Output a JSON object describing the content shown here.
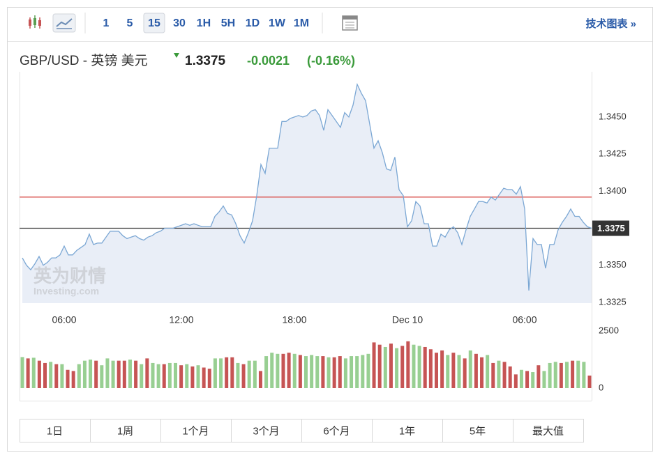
{
  "toolbar": {
    "intervals": [
      "1",
      "5",
      "15",
      "30",
      "1H",
      "5H",
      "1D",
      "1W",
      "1M"
    ],
    "selected": "15",
    "advanced": "技术图表 »"
  },
  "header": {
    "pair": "GBP/USD - 英镑 美元",
    "price": "1.3375",
    "change": "-0.0021",
    "change_pct": "(-0.16%)"
  },
  "watermark": {
    "brand": "英为财情",
    "site": "Investing.com"
  },
  "chart_data": [
    {
      "type": "area",
      "color": "#7ba7d4",
      "fill": "#e9eef7",
      "values": [
        1.3355,
        1.335,
        1.3347,
        1.3351,
        1.3356,
        1.335,
        1.3352,
        1.3355,
        1.3355,
        1.3357,
        1.3363,
        1.3357,
        1.3357,
        1.336,
        1.3362,
        1.3364,
        1.3371,
        1.3364,
        1.3365,
        1.3365,
        1.3369,
        1.3373,
        1.3373,
        1.3373,
        1.337,
        1.3368,
        1.3369,
        1.337,
        1.3368,
        1.3367,
        1.3369,
        1.337,
        1.3372,
        1.3373,
        1.3375,
        1.3375,
        1.3375,
        1.3376,
        1.3377,
        1.3378,
        1.3377,
        1.3378,
        1.3377,
        1.3376,
        1.3376,
        1.3376,
        1.3383,
        1.3386,
        1.339,
        1.3385,
        1.3384,
        1.3378,
        1.337,
        1.3365,
        1.3372,
        1.338,
        1.3397,
        1.3418,
        1.3412,
        1.3429,
        1.3429,
        1.3429,
        1.3447,
        1.3447,
        1.3449,
        1.345,
        1.3451,
        1.345,
        1.3451,
        1.3454,
        1.3455,
        1.3451,
        1.3441,
        1.3455,
        1.3451,
        1.3447,
        1.3443,
        1.3453,
        1.345,
        1.3458,
        1.3472,
        1.3466,
        1.3461,
        1.3445,
        1.3429,
        1.3434,
        1.3426,
        1.3415,
        1.3414,
        1.3423,
        1.3401,
        1.3397,
        1.3376,
        1.338,
        1.3393,
        1.339,
        1.3378,
        1.3378,
        1.3363,
        1.3363,
        1.3371,
        1.3369,
        1.3374,
        1.3376,
        1.3372,
        1.3364,
        1.3374,
        1.3383,
        1.3388,
        1.3393,
        1.3393,
        1.3392,
        1.3396,
        1.3394,
        1.3398,
        1.3402,
        1.3401,
        1.3401,
        1.3398,
        1.3403,
        1.3388,
        1.3333,
        1.3368,
        1.3364,
        1.3364,
        1.3348,
        1.3364,
        1.3364,
        1.3374,
        1.3379,
        1.3383,
        1.3388,
        1.3383,
        1.3383,
        1.3379,
        1.3376,
        1.3375
      ],
      "xlim": [
        0,
        136
      ],
      "xticks": [
        {
          "value": 10,
          "label": "06:00"
        },
        {
          "value": 38,
          "label": "12:00"
        },
        {
          "value": 65,
          "label": "18:00"
        },
        {
          "value": 92,
          "label": "Dec 10"
        },
        {
          "value": 120,
          "label": "06:00"
        }
      ],
      "ylim": [
        1.33245,
        1.34805
      ],
      "yticks": [
        {
          "value": 1.345,
          "label": "1.3450"
        },
        {
          "value": 1.3425,
          "label": "1.3425"
        },
        {
          "value": 1.34,
          "label": "1.3400"
        },
        {
          "value": 1.3375,
          "label": "1.3375"
        },
        {
          "value": 1.335,
          "label": "1.3350"
        },
        {
          "value": 1.3325,
          "label": "1.3325"
        }
      ],
      "reference_lines": [
        {
          "value": 1.3396,
          "color": "#d9534f"
        },
        {
          "value": 1.3375,
          "color": "#333333"
        }
      ],
      "grid": false
    },
    {
      "type": "bar",
      "values": [
        1360,
        1300,
        1330,
        1200,
        1100,
        1150,
        1050,
        1050,
        800,
        750,
        1050,
        1200,
        1250,
        1200,
        1000,
        1300,
        1200,
        1200,
        1200,
        1250,
        1200,
        1050,
        1300,
        1100,
        1050,
        1050,
        1100,
        1100,
        1000,
        1050,
        950,
        1000,
        900,
        850,
        1300,
        1300,
        1350,
        1350,
        1100,
        1050,
        1200,
        1200,
        750,
        1400,
        1550,
        1500,
        1500,
        1550,
        1500,
        1450,
        1400,
        1450,
        1400,
        1400,
        1350,
        1350,
        1400,
        1300,
        1400,
        1400,
        1450,
        1500,
        2000,
        1900,
        1800,
        1950,
        1750,
        1850,
        2050,
        1900,
        1850,
        1800,
        1700,
        1550,
        1650,
        1450,
        1550,
        1450,
        1300,
        1650,
        1500,
        1350,
        1450,
        1100,
        1200,
        1150,
        950,
        600,
        800,
        750,
        700,
        1000,
        750,
        1100,
        1150,
        1100,
        1150,
        1200,
        1200,
        1150,
        550
      ],
      "colors": [
        "#98cf92",
        "#c65454",
        "#98cf92",
        "#c65454",
        "#c65454",
        "#98cf92",
        "#c65454",
        "#98cf92",
        "#c65454",
        "#c65454",
        "#98cf92",
        "#98cf92",
        "#98cf92",
        "#c65454",
        "#98cf92",
        "#98cf92",
        "#98cf92",
        "#c65454",
        "#c65454",
        "#98cf92",
        "#c65454",
        "#98cf92",
        "#c65454",
        "#98cf92",
        "#98cf92",
        "#c65454",
        "#98cf92",
        "#98cf92",
        "#c65454",
        "#98cf92",
        "#c65454",
        "#98cf92",
        "#c65454",
        "#c65454",
        "#98cf92",
        "#98cf92",
        "#c65454",
        "#c65454",
        "#98cf92",
        "#c65454",
        "#98cf92",
        "#98cf92",
        "#c65454",
        "#98cf92",
        "#98cf92",
        "#98cf92",
        "#c65454",
        "#c65454",
        "#98cf92",
        "#c65454",
        "#98cf92",
        "#98cf92",
        "#98cf92",
        "#c65454",
        "#98cf92",
        "#c65454",
        "#c65454",
        "#98cf92",
        "#98cf92",
        "#98cf92",
        "#98cf92",
        "#98cf92",
        "#c65454",
        "#c65454",
        "#98cf92",
        "#c65454",
        "#98cf92",
        "#c65454",
        "#c65454",
        "#98cf92",
        "#98cf92",
        "#c65454",
        "#c65454",
        "#c65454",
        "#c65454",
        "#98cf92",
        "#c65454",
        "#98cf92",
        "#c65454",
        "#98cf92",
        "#c65454",
        "#c65454",
        "#98cf92",
        "#c65454",
        "#98cf92",
        "#c65454",
        "#c65454",
        "#c65454",
        "#98cf92",
        "#c65454",
        "#98cf92",
        "#c65454",
        "#98cf92",
        "#98cf92",
        "#98cf92",
        "#c65454",
        "#98cf92",
        "#c65454",
        "#98cf92",
        "#98cf92",
        "#c65454"
      ],
      "ylim": [
        0,
        2500
      ],
      "yticks": [
        2500,
        0
      ]
    }
  ],
  "ranges": [
    "1日",
    "1周",
    "1个月",
    "3个月",
    "6个月",
    "1年",
    "5年",
    "最大值"
  ]
}
